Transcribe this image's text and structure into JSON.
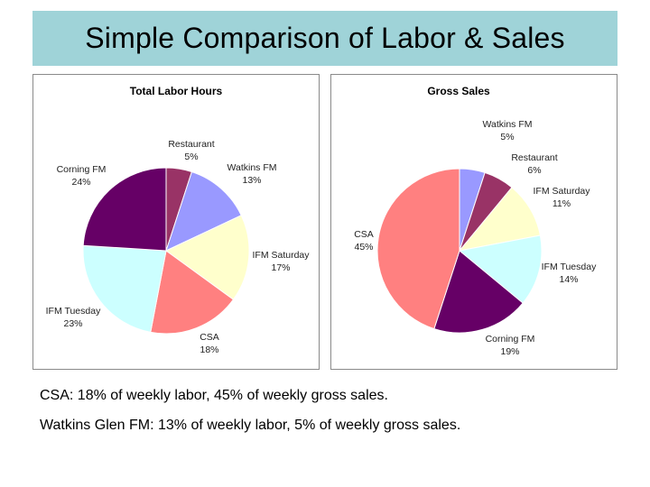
{
  "slide": {
    "title": "Simple Comparison of Labor & Sales",
    "notes": [
      "CSA: 18% of weekly labor, 45% of weekly gross sales.",
      "Watkins Glen FM: 13% of weekly labor, 5% of weekly gross sales."
    ]
  },
  "colors": {
    "title_bg": "#9fd3d8",
    "Restaurant": "#993366",
    "Watkins FM": "#9999ff",
    "IFM Saturday": "#ffffcc",
    "CSA": "#ff8080",
    "IFM Tuesday": "#ccffff",
    "Corning FM": "#660066"
  },
  "chart_data": [
    {
      "type": "pie",
      "title": "Total Labor Hours",
      "slices": [
        {
          "name": "Restaurant",
          "value": 5
        },
        {
          "name": "Watkins FM",
          "value": 13
        },
        {
          "name": "IFM Saturday",
          "value": 17
        },
        {
          "name": "CSA",
          "value": 18
        },
        {
          "name": "IFM Tuesday",
          "value": 23
        },
        {
          "name": "Corning FM",
          "value": 24
        }
      ],
      "labels": [
        {
          "name": "Restaurant",
          "text": "5%"
        },
        {
          "name": "Watkins FM",
          "text": "13%"
        },
        {
          "name": "IFM Saturday",
          "text": "17%"
        },
        {
          "name": "CSA",
          "text": "18%"
        },
        {
          "name": "IFM Tuesday",
          "text": "23%"
        },
        {
          "name": "Corning FM",
          "text": "24%"
        }
      ]
    },
    {
      "type": "pie",
      "title": "Gross Sales",
      "slices": [
        {
          "name": "Watkins FM",
          "value": 5
        },
        {
          "name": "Restaurant",
          "value": 6
        },
        {
          "name": "IFM Saturday",
          "value": 11
        },
        {
          "name": "IFM Tuesday",
          "value": 14
        },
        {
          "name": "Corning FM",
          "value": 19
        },
        {
          "name": "CSA",
          "value": 45
        }
      ],
      "labels": [
        {
          "name": "Watkins FM",
          "text": "5%"
        },
        {
          "name": "Restaurant",
          "text": "6%"
        },
        {
          "name": "IFM Saturday",
          "text": "11%"
        },
        {
          "name": "IFM Tuesday",
          "text": "14%"
        },
        {
          "name": "Corning FM",
          "text": "19%"
        },
        {
          "name": "CSA",
          "text": "45%"
        }
      ]
    }
  ]
}
